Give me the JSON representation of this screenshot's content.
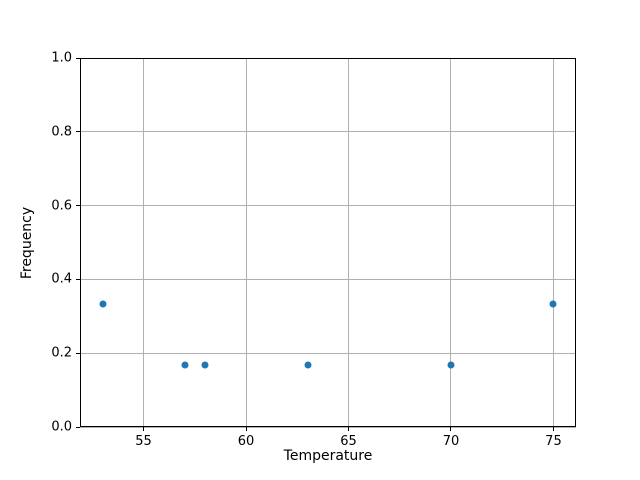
{
  "chart_data": {
    "type": "scatter",
    "title": "",
    "xlabel": "Temperature",
    "ylabel": "Frequency",
    "x": [
      53,
      57,
      58,
      63,
      70,
      75
    ],
    "y": [
      0.3333,
      0.1667,
      0.1667,
      0.1667,
      0.1667,
      0.3333
    ],
    "xlim": [
      51.9,
      76.1
    ],
    "ylim": [
      0.0,
      1.0
    ],
    "xticks": [
      55,
      60,
      65,
      70,
      75
    ],
    "xtick_labels": [
      "55",
      "60",
      "65",
      "70",
      "75"
    ],
    "yticks": [
      0.0,
      0.2,
      0.4,
      0.6,
      0.8,
      1.0
    ],
    "ytick_labels": [
      "0.0",
      "0.2",
      "0.4",
      "0.6",
      "0.8",
      "1.0"
    ],
    "grid": true,
    "legend": null,
    "marker_color": "#1f77b4",
    "marker_diameter_px": 7,
    "grid_color": "#b0b0b0",
    "axis_color": "#000000",
    "background_color": "#ffffff"
  }
}
